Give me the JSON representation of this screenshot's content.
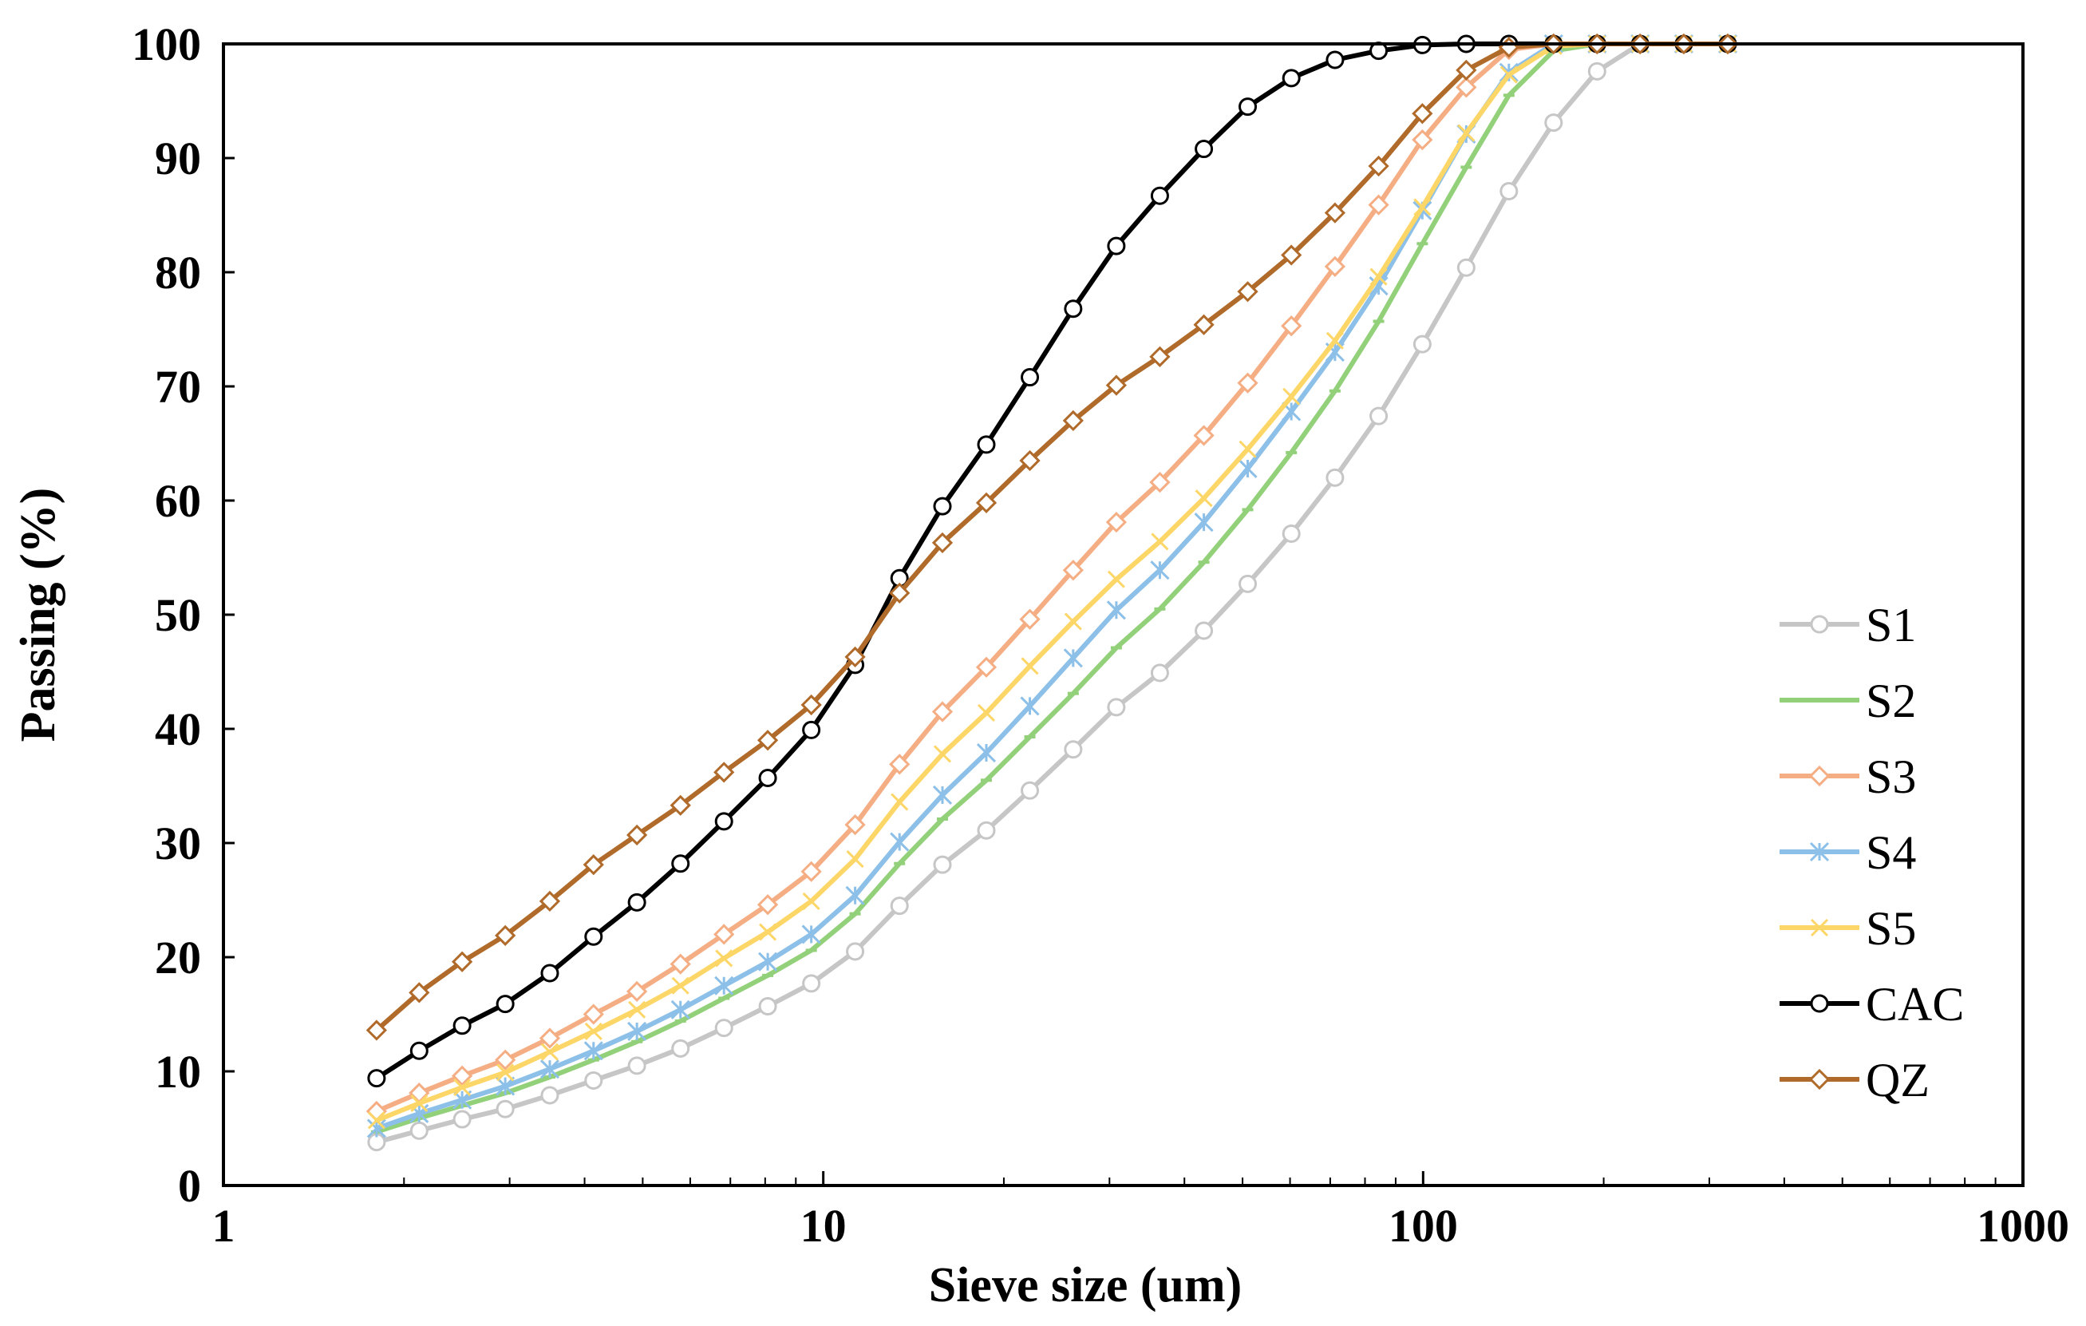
{
  "chart_data": {
    "type": "line",
    "title": "",
    "xlabel": "Sieve size (um)",
    "ylabel": "Passing (%)",
    "xscale": "log",
    "xlim": [
      1,
      1000
    ],
    "ylim": [
      0,
      100
    ],
    "x_ticks": [
      1,
      10,
      100,
      1000
    ],
    "x_tick_labels": [
      "1",
      "10",
      "100",
      "1000"
    ],
    "y_ticks": [
      0,
      10,
      20,
      30,
      40,
      50,
      60,
      70,
      80,
      90,
      100
    ],
    "y_tick_labels": [
      "0",
      "10",
      "20",
      "30",
      "40",
      "50",
      "60",
      "70",
      "80",
      "90",
      "100"
    ],
    "grid": false,
    "legend_position": "right",
    "x": [
      1.8,
      2.12,
      2.5,
      2.95,
      3.5,
      4.14,
      4.89,
      5.78,
      6.83,
      8.08,
      9.55,
      11.3,
      13.4,
      15.8,
      18.7,
      22.1,
      26.1,
      30.8,
      36.4,
      43.1,
      51.0,
      60.3,
      71.3,
      84.3,
      99.7,
      118,
      139,
      165,
      195,
      230,
      272,
      322
    ],
    "series": [
      {
        "name": "S1",
        "color": "#c6c6c6",
        "marker": "circle",
        "values": [
          3.8,
          4.8,
          5.8,
          6.7,
          7.9,
          9.2,
          10.5,
          12.0,
          13.8,
          15.7,
          17.7,
          20.5,
          24.5,
          28.1,
          31.1,
          34.6,
          38.2,
          41.9,
          44.9,
          48.6,
          52.7,
          57.1,
          62.0,
          67.4,
          73.7,
          80.4,
          87.1,
          93.1,
          97.6,
          100.0,
          100.0,
          100.0
        ]
      },
      {
        "name": "S2",
        "color": "#92d17a",
        "marker": "dash",
        "values": [
          4.7,
          5.9,
          7.0,
          8.1,
          9.5,
          11.0,
          12.6,
          14.4,
          16.4,
          18.4,
          20.6,
          23.8,
          28.2,
          32.1,
          35.5,
          39.3,
          43.1,
          47.1,
          50.5,
          54.6,
          59.2,
          64.2,
          69.6,
          75.7,
          82.5,
          89.2,
          95.5,
          99.4,
          100.0,
          100.0,
          100.0,
          100.0
        ]
      },
      {
        "name": "S3",
        "color": "#f5ae84",
        "marker": "diamond",
        "values": [
          6.5,
          8.1,
          9.6,
          11.0,
          12.9,
          15.0,
          17.0,
          19.4,
          22.0,
          24.6,
          27.5,
          31.6,
          36.9,
          41.5,
          45.4,
          49.6,
          53.9,
          58.1,
          61.6,
          65.7,
          70.3,
          75.3,
          80.5,
          85.9,
          91.6,
          96.2,
          99.5,
          100.0,
          100.0,
          100.0,
          100.0,
          100.0
        ]
      },
      {
        "name": "S4",
        "color": "#8cc0e8",
        "marker": "asterisk",
        "values": [
          5.0,
          6.3,
          7.5,
          8.7,
          10.2,
          11.8,
          13.5,
          15.4,
          17.5,
          19.6,
          22.0,
          25.4,
          30.1,
          34.2,
          37.9,
          42.0,
          46.2,
          50.4,
          53.9,
          58.1,
          62.8,
          67.8,
          73.0,
          78.8,
          85.4,
          92.1,
          97.5,
          100.0,
          100.0,
          100.0,
          100.0,
          100.0
        ]
      },
      {
        "name": "S5",
        "color": "#fdd668",
        "marker": "cross",
        "values": [
          5.7,
          7.2,
          8.6,
          9.9,
          11.7,
          13.5,
          15.4,
          17.5,
          19.9,
          22.2,
          24.9,
          28.6,
          33.6,
          37.8,
          41.4,
          45.5,
          49.4,
          53.1,
          56.4,
          60.2,
          64.5,
          69.1,
          74.0,
          79.6,
          85.7,
          92.2,
          97.3,
          99.8,
          100.0,
          100.0,
          100.0,
          100.0
        ]
      },
      {
        "name": "CAC",
        "color": "#000000",
        "marker": "circle",
        "values": [
          9.4,
          11.8,
          14.0,
          15.9,
          18.6,
          21.8,
          24.8,
          28.2,
          31.9,
          35.7,
          39.9,
          45.6,
          53.2,
          59.5,
          64.9,
          70.8,
          76.8,
          82.3,
          86.7,
          90.8,
          94.5,
          97.0,
          98.6,
          99.4,
          99.9,
          100.0,
          100.0,
          100.0,
          100.0,
          100.0,
          100.0,
          100.0
        ]
      },
      {
        "name": "QZ",
        "color": "#b06a2a",
        "marker": "diamond",
        "values": [
          13.6,
          16.9,
          19.6,
          21.9,
          24.9,
          28.1,
          30.7,
          33.3,
          36.2,
          39.0,
          42.1,
          46.3,
          51.9,
          56.3,
          59.8,
          63.5,
          67.0,
          70.1,
          72.6,
          75.4,
          78.3,
          81.5,
          85.2,
          89.3,
          93.9,
          97.7,
          99.7,
          100.0,
          100.0,
          100.0,
          100.0,
          100.0
        ]
      }
    ]
  }
}
